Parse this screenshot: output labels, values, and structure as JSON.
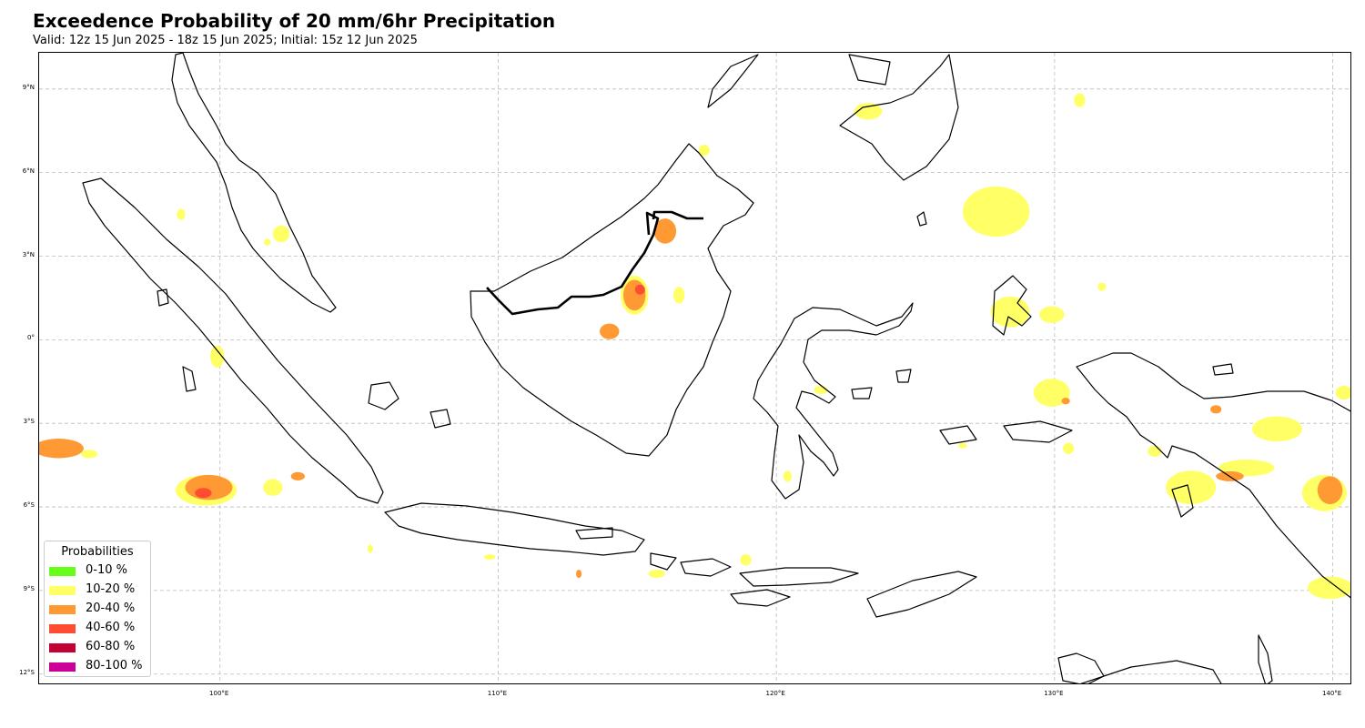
{
  "title": "Exceedence Probability of 20 mm/6hr Precipitation",
  "subtitle": "Valid: 12z 15 Jun 2025 - 18z 15 Jun 2025; Initial: 15z 12 Jun 2025",
  "map": {
    "lon_range": [
      93.5,
      140.7
    ],
    "lat_range": [
      -12.4,
      10.3
    ],
    "lon_ticks": [
      {
        "value": 100,
        "label": "100°E"
      },
      {
        "value": 110,
        "label": "110°E"
      },
      {
        "value": 120,
        "label": "120°E"
      },
      {
        "value": 130,
        "label": "130°E"
      },
      {
        "value": 140,
        "label": "140°E"
      }
    ],
    "lat_ticks": [
      {
        "value": 9,
        "label": "9°N"
      },
      {
        "value": 6,
        "label": "6°N"
      },
      {
        "value": 3,
        "label": "3°N"
      },
      {
        "value": 0,
        "label": "0°"
      },
      {
        "value": -3,
        "label": "3°S"
      },
      {
        "value": -6,
        "label": "6°S"
      },
      {
        "value": -9,
        "label": "9°S"
      },
      {
        "value": -12,
        "label": "12°S"
      }
    ],
    "gridlines": true
  },
  "legend": {
    "title": "Probabilities",
    "placement": "lower-left",
    "items": [
      {
        "label": "0-10 %",
        "color": "#66ff1a"
      },
      {
        "label": "10-20 %",
        "color": "#ffff66"
      },
      {
        "label": "20-40 %",
        "color": "#ff9933"
      },
      {
        "label": "40-60 %",
        "color": "#ff4d33"
      },
      {
        "label": "60-80 %",
        "color": "#c20033"
      },
      {
        "label": "80-100 %",
        "color": "#cc0099"
      }
    ]
  },
  "chart_data": {
    "type": "heatmap",
    "title": "Exceedence Probability of 20 mm/6hr Precipitation",
    "xlabel": "",
    "ylabel": "",
    "xlim": [
      93.5,
      140.7
    ],
    "ylim": [
      -12.4,
      10.3
    ],
    "grid": true,
    "legend_placement": "lower-left",
    "probability_areas": [
      {
        "lon": 94.2,
        "lat": -3.9,
        "rlon": 0.9,
        "rlat": 0.35,
        "bin": "20-40 %"
      },
      {
        "lon": 95.3,
        "lat": -4.1,
        "rlon": 0.3,
        "rlat": 0.15,
        "bin": "10-20 %"
      },
      {
        "lon": 99.5,
        "lat": -5.4,
        "rlon": 1.1,
        "rlat": 0.55,
        "bin": "10-20 %"
      },
      {
        "lon": 99.6,
        "lat": -5.3,
        "rlon": 0.85,
        "rlat": 0.45,
        "bin": "20-40 %"
      },
      {
        "lon": 99.4,
        "lat": -5.5,
        "rlon": 0.3,
        "rlat": 0.18,
        "bin": "40-60 %"
      },
      {
        "lon": 101.9,
        "lat": -5.3,
        "rlon": 0.35,
        "rlat": 0.3,
        "bin": "10-20 %"
      },
      {
        "lon": 102.8,
        "lat": -4.9,
        "rlon": 0.25,
        "rlat": 0.15,
        "bin": "20-40 %"
      },
      {
        "lon": 99.9,
        "lat": -0.6,
        "rlon": 0.25,
        "rlat": 0.4,
        "bin": "10-20 %"
      },
      {
        "lon": 98.6,
        "lat": 4.5,
        "rlon": 0.15,
        "rlat": 0.2,
        "bin": "10-20 %"
      },
      {
        "lon": 102.2,
        "lat": 3.8,
        "rlon": 0.3,
        "rlat": 0.3,
        "bin": "10-20 %"
      },
      {
        "lon": 101.7,
        "lat": 3.5,
        "rlon": 0.12,
        "rlat": 0.12,
        "bin": "10-20 %"
      },
      {
        "lon": 114.9,
        "lat": 1.6,
        "rlon": 0.5,
        "rlat": 0.7,
        "bin": "10-20 %"
      },
      {
        "lon": 114.9,
        "lat": 1.6,
        "rlon": 0.4,
        "rlat": 0.55,
        "bin": "20-40 %"
      },
      {
        "lon": 115.1,
        "lat": 1.8,
        "rlon": 0.18,
        "rlat": 0.18,
        "bin": "40-60 %"
      },
      {
        "lon": 114.0,
        "lat": 0.3,
        "rlon": 0.35,
        "rlat": 0.28,
        "bin": "20-40 %"
      },
      {
        "lon": 116.0,
        "lat": 3.9,
        "rlon": 0.4,
        "rlat": 0.45,
        "bin": "20-40 %"
      },
      {
        "lon": 116.5,
        "lat": 1.6,
        "rlon": 0.2,
        "rlat": 0.3,
        "bin": "10-20 %"
      },
      {
        "lon": 117.4,
        "lat": 6.8,
        "rlon": 0.2,
        "rlat": 0.2,
        "bin": "10-20 %"
      },
      {
        "lon": 123.3,
        "lat": 8.2,
        "rlon": 0.5,
        "rlat": 0.3,
        "bin": "10-20 %"
      },
      {
        "lon": 127.9,
        "lat": 4.6,
        "rlon": 1.2,
        "rlat": 0.9,
        "bin": "10-20 %"
      },
      {
        "lon": 128.4,
        "lat": 1.0,
        "rlon": 0.7,
        "rlat": 0.55,
        "bin": "10-20 %"
      },
      {
        "lon": 129.9,
        "lat": 0.9,
        "rlon": 0.45,
        "rlat": 0.3,
        "bin": "10-20 %"
      },
      {
        "lon": 130.9,
        "lat": 8.6,
        "rlon": 0.2,
        "rlat": 0.25,
        "bin": "10-20 %"
      },
      {
        "lon": 129.9,
        "lat": -1.9,
        "rlon": 0.65,
        "rlat": 0.5,
        "bin": "10-20 %"
      },
      {
        "lon": 130.4,
        "lat": -2.2,
        "rlon": 0.15,
        "rlat": 0.12,
        "bin": "20-40 %"
      },
      {
        "lon": 134.9,
        "lat": -5.3,
        "rlon": 0.9,
        "rlat": 0.6,
        "bin": "10-20 %"
      },
      {
        "lon": 138.0,
        "lat": -3.2,
        "rlon": 0.9,
        "rlat": 0.45,
        "bin": "10-20 %"
      },
      {
        "lon": 136.9,
        "lat": -4.6,
        "rlon": 1.0,
        "rlat": 0.3,
        "bin": "10-20 %"
      },
      {
        "lon": 136.3,
        "lat": -4.9,
        "rlon": 0.5,
        "rlat": 0.18,
        "bin": "20-40 %"
      },
      {
        "lon": 139.7,
        "lat": -5.5,
        "rlon": 0.8,
        "rlat": 0.65,
        "bin": "10-20 %"
      },
      {
        "lon": 139.9,
        "lat": -5.4,
        "rlon": 0.45,
        "rlat": 0.5,
        "bin": "20-40 %"
      },
      {
        "lon": 139.9,
        "lat": -8.9,
        "rlon": 0.8,
        "rlat": 0.4,
        "bin": "10-20 %"
      },
      {
        "lon": 140.4,
        "lat": -1.9,
        "rlon": 0.3,
        "rlat": 0.25,
        "bin": "10-20 %"
      },
      {
        "lon": 135.8,
        "lat": -2.5,
        "rlon": 0.2,
        "rlat": 0.15,
        "bin": "20-40 %"
      },
      {
        "lon": 133.6,
        "lat": -4.0,
        "rlon": 0.25,
        "rlat": 0.2,
        "bin": "10-20 %"
      },
      {
        "lon": 130.5,
        "lat": -3.9,
        "rlon": 0.2,
        "rlat": 0.2,
        "bin": "10-20 %"
      },
      {
        "lon": 118.9,
        "lat": -7.9,
        "rlon": 0.2,
        "rlat": 0.2,
        "bin": "10-20 %"
      },
      {
        "lon": 115.7,
        "lat": -8.4,
        "rlon": 0.3,
        "rlat": 0.15,
        "bin": "10-20 %"
      },
      {
        "lon": 112.9,
        "lat": -8.4,
        "rlon": 0.1,
        "rlat": 0.15,
        "bin": "20-40 %"
      },
      {
        "lon": 105.4,
        "lat": -7.5,
        "rlon": 0.1,
        "rlat": 0.15,
        "bin": "10-20 %"
      },
      {
        "lon": 109.7,
        "lat": -7.8,
        "rlon": 0.2,
        "rlat": 0.1,
        "bin": "10-20 %"
      },
      {
        "lon": 120.4,
        "lat": -4.9,
        "rlon": 0.15,
        "rlat": 0.2,
        "bin": "10-20 %"
      },
      {
        "lon": 121.6,
        "lat": -1.8,
        "rlon": 0.25,
        "rlat": 0.15,
        "bin": "10-20 %"
      },
      {
        "lon": 131.7,
        "lat": 1.9,
        "rlon": 0.15,
        "rlat": 0.15,
        "bin": "10-20 %"
      },
      {
        "lon": 126.7,
        "lat": -3.8,
        "rlon": 0.15,
        "rlat": 0.1,
        "bin": "10-20 %"
      }
    ]
  }
}
